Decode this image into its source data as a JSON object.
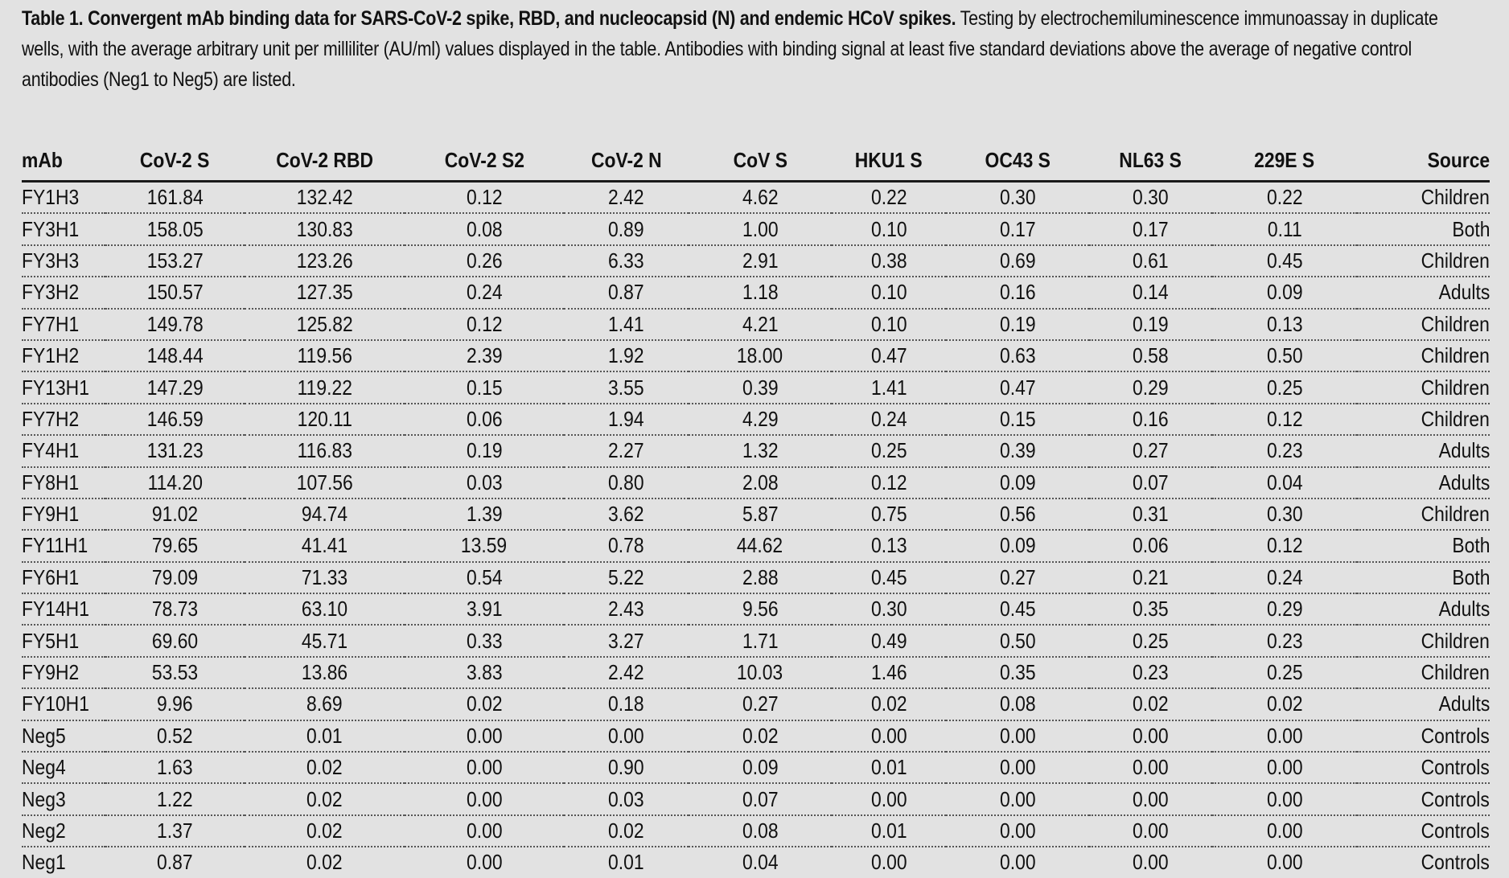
{
  "caption": {
    "title": "Table 1. Convergent mAb binding data for SARS-CoV-2 spike, RBD, and nucleocapsid (N) and endemic HCoV spikes.",
    "body": "Testing by electrochemiluminescence immunoassay in duplicate wells, with the average arbitrary unit per milliliter (AU/ml) values displayed in the table. Antibodies with binding signal at least five standard deviations above the average of negative control antibodies (Neg1 to Neg5) are listed."
  },
  "table": {
    "headers": [
      "mAb",
      "CoV-2 S",
      "CoV-2 RBD",
      "CoV-2 S2",
      "CoV-2 N",
      "CoV S",
      "HKU1 S",
      "OC43 S",
      "NL63 S",
      "229E S",
      "Source"
    ],
    "rows": [
      [
        "FY1H3",
        "161.84",
        "132.42",
        "0.12",
        "2.42",
        "4.62",
        "0.22",
        "0.30",
        "0.30",
        "0.22",
        "Children"
      ],
      [
        "FY3H1",
        "158.05",
        "130.83",
        "0.08",
        "0.89",
        "1.00",
        "0.10",
        "0.17",
        "0.17",
        "0.11",
        "Both"
      ],
      [
        "FY3H3",
        "153.27",
        "123.26",
        "0.26",
        "6.33",
        "2.91",
        "0.38",
        "0.69",
        "0.61",
        "0.45",
        "Children"
      ],
      [
        "FY3H2",
        "150.57",
        "127.35",
        "0.24",
        "0.87",
        "1.18",
        "0.10",
        "0.16",
        "0.14",
        "0.09",
        "Adults"
      ],
      [
        "FY7H1",
        "149.78",
        "125.82",
        "0.12",
        "1.41",
        "4.21",
        "0.10",
        "0.19",
        "0.19",
        "0.13",
        "Children"
      ],
      [
        "FY1H2",
        "148.44",
        "119.56",
        "2.39",
        "1.92",
        "18.00",
        "0.47",
        "0.63",
        "0.58",
        "0.50",
        "Children"
      ],
      [
        "FY13H1",
        "147.29",
        "119.22",
        "0.15",
        "3.55",
        "0.39",
        "1.41",
        "0.47",
        "0.29",
        "0.25",
        "Children"
      ],
      [
        "FY7H2",
        "146.59",
        "120.11",
        "0.06",
        "1.94",
        "4.29",
        "0.24",
        "0.15",
        "0.16",
        "0.12",
        "Children"
      ],
      [
        "FY4H1",
        "131.23",
        "116.83",
        "0.19",
        "2.27",
        "1.32",
        "0.25",
        "0.39",
        "0.27",
        "0.23",
        "Adults"
      ],
      [
        "FY8H1",
        "114.20",
        "107.56",
        "0.03",
        "0.80",
        "2.08",
        "0.12",
        "0.09",
        "0.07",
        "0.04",
        "Adults"
      ],
      [
        "FY9H1",
        "91.02",
        "94.74",
        "1.39",
        "3.62",
        "5.87",
        "0.75",
        "0.56",
        "0.31",
        "0.30",
        "Children"
      ],
      [
        "FY11H1",
        "79.65",
        "41.41",
        "13.59",
        "0.78",
        "44.62",
        "0.13",
        "0.09",
        "0.06",
        "0.12",
        "Both"
      ],
      [
        "FY6H1",
        "79.09",
        "71.33",
        "0.54",
        "5.22",
        "2.88",
        "0.45",
        "0.27",
        "0.21",
        "0.24",
        "Both"
      ],
      [
        "FY14H1",
        "78.73",
        "63.10",
        "3.91",
        "2.43",
        "9.56",
        "0.30",
        "0.45",
        "0.35",
        "0.29",
        "Adults"
      ],
      [
        "FY5H1",
        "69.60",
        "45.71",
        "0.33",
        "3.27",
        "1.71",
        "0.49",
        "0.50",
        "0.25",
        "0.23",
        "Children"
      ],
      [
        "FY9H2",
        "53.53",
        "13.86",
        "3.83",
        "2.42",
        "10.03",
        "1.46",
        "0.35",
        "0.23",
        "0.25",
        "Children"
      ],
      [
        "FY10H1",
        "9.96",
        "8.69",
        "0.02",
        "0.18",
        "0.27",
        "0.02",
        "0.08",
        "0.02",
        "0.02",
        "Adults"
      ],
      [
        "Neg5",
        "0.52",
        "0.01",
        "0.00",
        "0.00",
        "0.02",
        "0.00",
        "0.00",
        "0.00",
        "0.00",
        "Controls"
      ],
      [
        "Neg4",
        "1.63",
        "0.02",
        "0.00",
        "0.90",
        "0.09",
        "0.01",
        "0.00",
        "0.00",
        "0.00",
        "Controls"
      ],
      [
        "Neg3",
        "1.22",
        "0.02",
        "0.00",
        "0.03",
        "0.07",
        "0.00",
        "0.00",
        "0.00",
        "0.00",
        "Controls"
      ],
      [
        "Neg2",
        "1.37",
        "0.02",
        "0.00",
        "0.02",
        "0.08",
        "0.01",
        "0.00",
        "0.00",
        "0.00",
        "Controls"
      ],
      [
        "Neg1",
        "0.87",
        "0.02",
        "0.00",
        "0.01",
        "0.04",
        "0.00",
        "0.00",
        "0.00",
        "0.00",
        "Controls"
      ]
    ]
  }
}
